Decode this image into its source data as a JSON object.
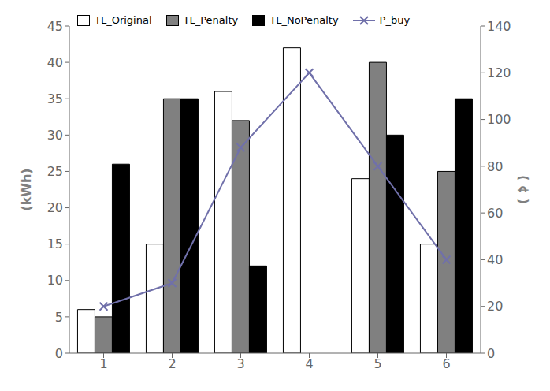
{
  "chart_data": {
    "type": "bar",
    "categories": [
      1,
      2,
      3,
      4,
      5,
      6
    ],
    "series": [
      {
        "name": "TL_Original",
        "type": "bar",
        "color": "#ffffff",
        "values": [
          6,
          15,
          36,
          42,
          24,
          15
        ]
      },
      {
        "name": "TL_Penalty",
        "type": "bar",
        "color": "#808080",
        "values": [
          5,
          35,
          32,
          0,
          40,
          25
        ]
      },
      {
        "name": "TL_NoPenalty",
        "type": "bar",
        "color": "#000000",
        "values": [
          26,
          35,
          12,
          0,
          30,
          35
        ]
      },
      {
        "name": "P_buy",
        "type": "line",
        "axis": "y2",
        "color": "#7070aa",
        "marker": "x",
        "values": [
          20,
          30,
          88,
          120,
          80,
          40
        ]
      }
    ],
    "ylim": [
      0,
      45
    ],
    "yticks": [
      0,
      5,
      10,
      15,
      20,
      25,
      30,
      35,
      40,
      45
    ],
    "y2lim": [
      0,
      140
    ],
    "y2ticks": [
      0,
      20,
      40,
      60,
      80,
      100,
      120,
      140
    ],
    "ylabel": "(kWh)",
    "y2label": "( ¢ )",
    "grid": false,
    "legend": "upper left"
  }
}
